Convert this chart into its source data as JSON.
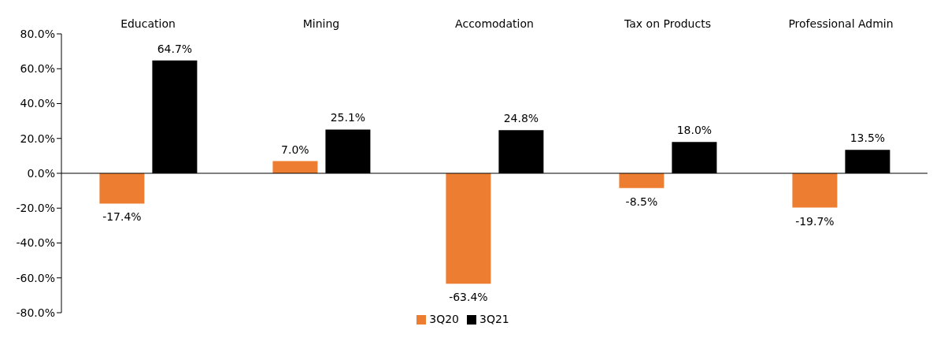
{
  "chart_data": {
    "type": "bar",
    "categories": [
      "Education",
      "Mining",
      "Accomodation",
      "Tax on Products",
      "Professional Admin"
    ],
    "series": [
      {
        "name": "3Q20",
        "color": "#ed7d31",
        "values": [
          -17.4,
          7.0,
          -63.4,
          -8.5,
          -19.7
        ],
        "value_labels": [
          "-17.4%",
          "7.0%",
          "-63.4%",
          "-8.5%",
          "-19.7%"
        ]
      },
      {
        "name": "3Q21",
        "color": "#000000",
        "values": [
          64.7,
          25.1,
          24.8,
          18.0,
          13.5
        ],
        "value_labels": [
          "64.7%",
          "25.1%",
          "24.8%",
          "18.0%",
          "13.5%"
        ]
      }
    ],
    "ylim": [
      -80,
      80
    ],
    "yticks": [
      {
        "value": -80,
        "label": "-80.0%"
      },
      {
        "value": -60,
        "label": "-60.0%"
      },
      {
        "value": -40,
        "label": "-40.0%"
      },
      {
        "value": -20,
        "label": "-20.0%"
      },
      {
        "value": 0,
        "label": "0.0%"
      },
      {
        "value": 20,
        "label": "20.0%"
      },
      {
        "value": 40,
        "label": "40.0%"
      },
      {
        "value": 60,
        "label": "60.0%"
      },
      {
        "value": 80,
        "label": "80.0%"
      }
    ],
    "legend": "bottom"
  }
}
